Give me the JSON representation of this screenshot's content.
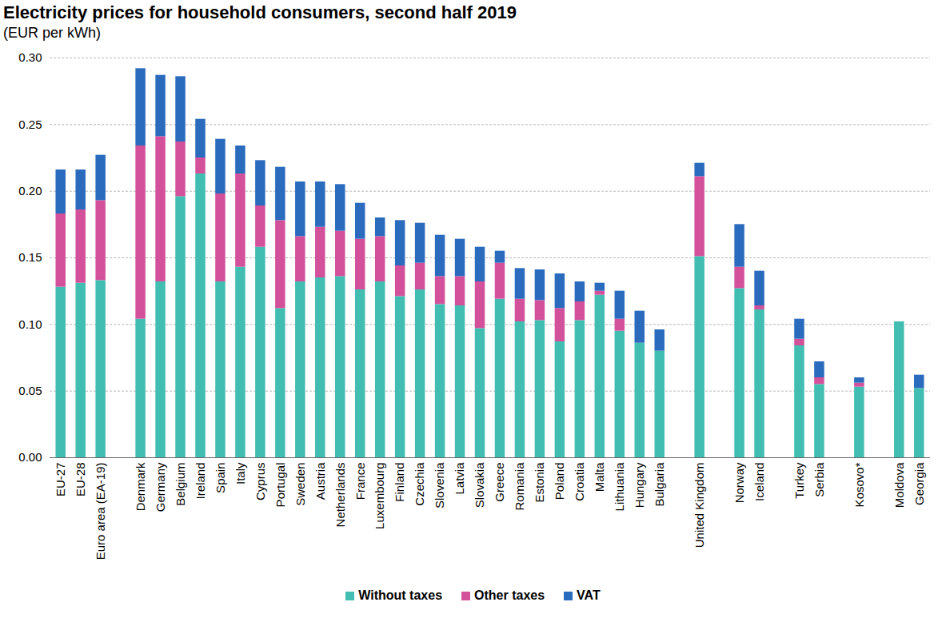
{
  "chart_data": {
    "type": "bar",
    "title": "Electricity prices for household consumers, second half 2019",
    "subtitle": "(EUR per kWh)",
    "stacked": true,
    "grid": true,
    "legend": "bottom",
    "categories": [
      "EU-27",
      "EU-28",
      "Euro area (EA-19)",
      null,
      "Denmark",
      "Germany",
      "Belgium",
      "Ireland",
      "Spain",
      "Italy",
      "Cyprus",
      "Portugal",
      "Sweden",
      "Austria",
      "Netherlands",
      "France",
      "Luxembourg",
      "Finland",
      "Czechia",
      "Slovenia",
      "Latvia",
      "Slovakia",
      "Greece",
      "Romania",
      "Estonia",
      "Poland",
      "Croatia",
      "Malta",
      "Lithuania",
      "Hungary",
      "Bulgaria",
      null,
      "United Kingdom",
      null,
      "Norway",
      "Iceland",
      null,
      "Turkey",
      "Serbia",
      null,
      "Kosovo*",
      null,
      "Moldova",
      "Georgia"
    ],
    "series": [
      {
        "name": "Without taxes",
        "color": "#41bdb1",
        "values": [
          0.128,
          0.131,
          0.133,
          null,
          0.104,
          0.132,
          0.196,
          0.213,
          0.132,
          0.143,
          0.158,
          0.112,
          0.132,
          0.135,
          0.136,
          0.126,
          0.132,
          0.121,
          0.126,
          0.115,
          0.114,
          0.097,
          0.119,
          0.102,
          0.103,
          0.087,
          0.103,
          0.122,
          0.095,
          0.086,
          0.08,
          null,
          0.151,
          null,
          0.127,
          0.111,
          null,
          0.084,
          0.055,
          null,
          0.053,
          null,
          0.102,
          0.052
        ]
      },
      {
        "name": "Other taxes",
        "color": "#d3519b",
        "values": [
          0.055,
          0.055,
          0.06,
          null,
          0.13,
          0.109,
          0.041,
          0.012,
          0.066,
          0.07,
          0.031,
          0.066,
          0.034,
          0.038,
          0.034,
          0.038,
          0.034,
          0.023,
          0.02,
          0.021,
          0.022,
          0.035,
          0.027,
          0.017,
          0.015,
          0.025,
          0.014,
          0.003,
          0.009,
          0,
          0,
          null,
          0.06,
          null,
          0.016,
          0.003,
          null,
          0.005,
          0.005,
          null,
          0.003,
          null,
          0,
          0
        ]
      },
      {
        "name": "VAT",
        "color": "#2b6bbd",
        "values": [
          0.033,
          0.03,
          0.034,
          null,
          0.058,
          0.046,
          0.049,
          0.029,
          0.041,
          0.021,
          0.034,
          0.04,
          0.041,
          0.034,
          0.035,
          0.027,
          0.014,
          0.034,
          0.03,
          0.031,
          0.028,
          0.026,
          0.009,
          0.023,
          0.023,
          0.026,
          0.015,
          0.006,
          0.021,
          0.024,
          0.016,
          null,
          0.01,
          null,
          0.032,
          0.026,
          null,
          0.015,
          0.012,
          null,
          0.004,
          null,
          0,
          0.01
        ]
      }
    ],
    "ylim": [
      0,
      0.3
    ],
    "yticks": [
      {
        "value": 0,
        "label": "0.00"
      },
      {
        "value": 0.05,
        "label": "0.05"
      },
      {
        "value": 0.1,
        "label": "0.10"
      },
      {
        "value": 0.15,
        "label": "0.15"
      },
      {
        "value": 0.2,
        "label": "0.20"
      },
      {
        "value": 0.25,
        "label": "0.25"
      },
      {
        "value": 0.3,
        "label": "0.30"
      }
    ]
  }
}
